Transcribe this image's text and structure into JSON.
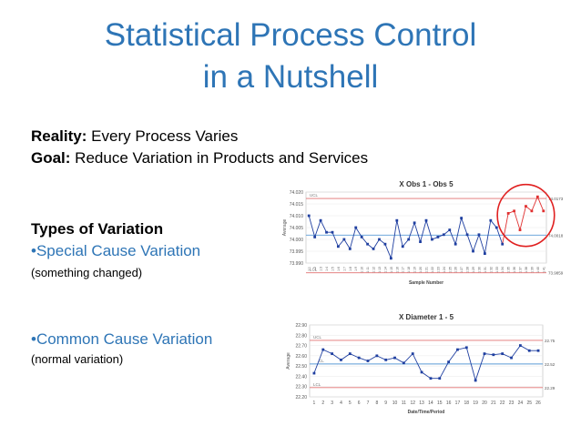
{
  "slide": {
    "title_line1": "Statistical Process Control",
    "title_line2": "in a Nutshell",
    "reality_label": "Reality:",
    "reality_text": " Every Process Varies",
    "goal_label": "Goal:",
    "goal_text": " Reduce Variation in Products and Services",
    "types_heading": "Types of Variation",
    "special_label": "•Special Cause Variation",
    "special_note": "(something changed)",
    "common_label": "•Common Cause Variation",
    "common_note": "(normal variation)",
    "colors": {
      "title": "#2e75b6",
      "series": "#1f3fa0",
      "limits": "#e07070",
      "outlier": "#e03030",
      "centerline": "#5b9bd5",
      "circle": "#e02020"
    }
  },
  "chart_data": [
    {
      "type": "line",
      "title": "X Obs 1 - Obs 5",
      "xlabel": "Sample Number",
      "ylabel": "Average",
      "ylim": [
        73.99,
        74.02
      ],
      "yticks": [
        "74.020",
        "74.015",
        "74.010",
        "74.005",
        "74.000",
        "73.995",
        "73.990"
      ],
      "limit_labels": {
        "ucl": "UCL",
        "lcl": "LCL",
        "ucl_value": "74.0173",
        "center_value": "74.0018",
        "lcl_value": "73.9859"
      },
      "ucl": 74.0173,
      "center": 74.0018,
      "lcl": 73.9859,
      "values": [
        74.01,
        74.001,
        74.008,
        74.003,
        74.003,
        73.997,
        74.0,
        73.996,
        74.005,
        74.001,
        73.998,
        73.996,
        74.0,
        73.998,
        73.992,
        74.008,
        73.997,
        74.0,
        74.007,
        73.999,
        74.008,
        74.0,
        74.001,
        74.002,
        74.004,
        73.998,
        74.009,
        74.002,
        73.995,
        74.002,
        73.994,
        74.008,
        74.005,
        73.998,
        74.011,
        74.012,
        74.004,
        74.014,
        74.012,
        74.018,
        74.012
      ],
      "special_start_index": 34,
      "highlight": "circle"
    },
    {
      "type": "line",
      "title": "X Diameter 1 - 5",
      "xlabel": "Date/Time/Period",
      "ylabel": "Average",
      "ylim": [
        22.2,
        22.9
      ],
      "yticks": [
        "22.90",
        "22.80",
        "22.70",
        "22.60",
        "22.50",
        "22.40",
        "22.30",
        "22.20"
      ],
      "limit_labels": {
        "ucl": "UCL",
        "cl": "CL",
        "lcl": "LCL",
        "ucl_value": "22.75",
        "center_value": "22.52",
        "lcl_value": "22.29"
      },
      "ucl": 22.75,
      "center": 22.52,
      "lcl": 22.29,
      "categories": [
        "1",
        "2",
        "3",
        "4",
        "5",
        "6",
        "7",
        "8",
        "9",
        "10",
        "11",
        "12",
        "13",
        "14",
        "15",
        "16",
        "17",
        "18",
        "19",
        "20",
        "21",
        "22",
        "23",
        "24",
        "25",
        "26"
      ],
      "values": [
        22.43,
        22.66,
        22.62,
        22.56,
        22.62,
        22.58,
        22.55,
        22.6,
        22.56,
        22.58,
        22.53,
        22.62,
        22.44,
        22.38,
        22.38,
        22.54,
        22.66,
        22.68,
        22.36,
        22.62,
        22.61,
        22.62,
        22.58,
        22.7,
        22.65,
        22.65
      ]
    }
  ]
}
